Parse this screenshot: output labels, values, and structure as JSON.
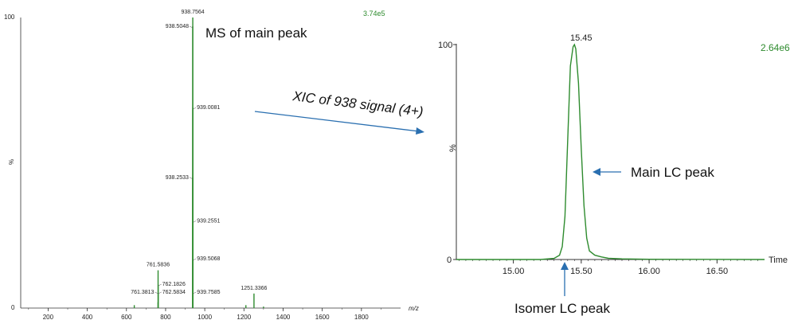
{
  "chart_data": [
    {
      "type": "bar",
      "name": "ms-spectrum",
      "title": "",
      "annotation": "MS of main peak",
      "xlabel": "m/z",
      "ylabel": "%",
      "max_intensity": "3.74e5",
      "xlim": [
        60,
        2000
      ],
      "ylim": [
        0,
        100
      ],
      "x_ticks": [
        200,
        400,
        600,
        800,
        1000,
        1200,
        1400,
        1600,
        1800
      ],
      "y_ticks": [
        0,
        100
      ],
      "line_color": "#2e8b2e",
      "peaks": [
        {
          "mz": 938.7564,
          "intensity": 100,
          "label": "938.7564"
        },
        {
          "mz": 938.5048,
          "intensity": 97,
          "label": "938.5048"
        },
        {
          "mz": 939.0081,
          "intensity": 69,
          "label": "939.0081"
        },
        {
          "mz": 938.2533,
          "intensity": 45,
          "label": "938.2533"
        },
        {
          "mz": 939.2551,
          "intensity": 30,
          "label": "939.2551"
        },
        {
          "mz": 939.5068,
          "intensity": 17,
          "label": "939.5068"
        },
        {
          "mz": 939.7585,
          "intensity": 5,
          "label": "939.7585"
        },
        {
          "mz": 761.5836,
          "intensity": 13,
          "label": "761.5836"
        },
        {
          "mz": 762.1826,
          "intensity": 8,
          "label": "762.1826"
        },
        {
          "mz": 762.5834,
          "intensity": 5,
          "label": "762.5834"
        },
        {
          "mz": 761.3813,
          "intensity": 2,
          "label": "761.3813"
        },
        {
          "mz": 1251.3366,
          "intensity": 5,
          "label": "1251.3366"
        },
        {
          "mz": 640,
          "intensity": 1,
          "label": ""
        },
        {
          "mz": 1210,
          "intensity": 1,
          "label": ""
        },
        {
          "mz": 1300,
          "intensity": 0.5,
          "label": ""
        }
      ]
    },
    {
      "type": "line",
      "name": "xic-chromatogram",
      "title": "",
      "annotation": "XIC of 938 signal (4+)",
      "xlabel": "Time",
      "ylabel": "%",
      "max_intensity": "2.64e6",
      "xlim": [
        14.58,
        16.85
      ],
      "ylim": [
        0,
        100
      ],
      "x_ticks": [
        15.0,
        15.5,
        16.0,
        16.5
      ],
      "x_tick_labels": [
        "15.00",
        "15.50",
        "16.00",
        "16.50"
      ],
      "y_ticks": [
        0,
        100
      ],
      "apex_label": "15.45",
      "line_color": "#2e8b2e",
      "x": [
        14.58,
        15.2,
        15.3,
        15.34,
        15.36,
        15.38,
        15.4,
        15.42,
        15.44,
        15.45,
        15.46,
        15.48,
        15.5,
        15.52,
        15.54,
        15.56,
        15.6,
        15.65,
        15.7,
        15.8,
        16.0,
        16.85
      ],
      "y": [
        0,
        0,
        0.5,
        2,
        6,
        20,
        55,
        90,
        99,
        100,
        98,
        82,
        52,
        25,
        10,
        4,
        2,
        1.2,
        0.6,
        0.3,
        0.1,
        0
      ],
      "annotations": [
        {
          "text": "Main LC peak",
          "x": 15.52,
          "y": 40
        },
        {
          "text": "Isomer LC peak",
          "x": 15.37,
          "y": 0
        }
      ]
    }
  ]
}
